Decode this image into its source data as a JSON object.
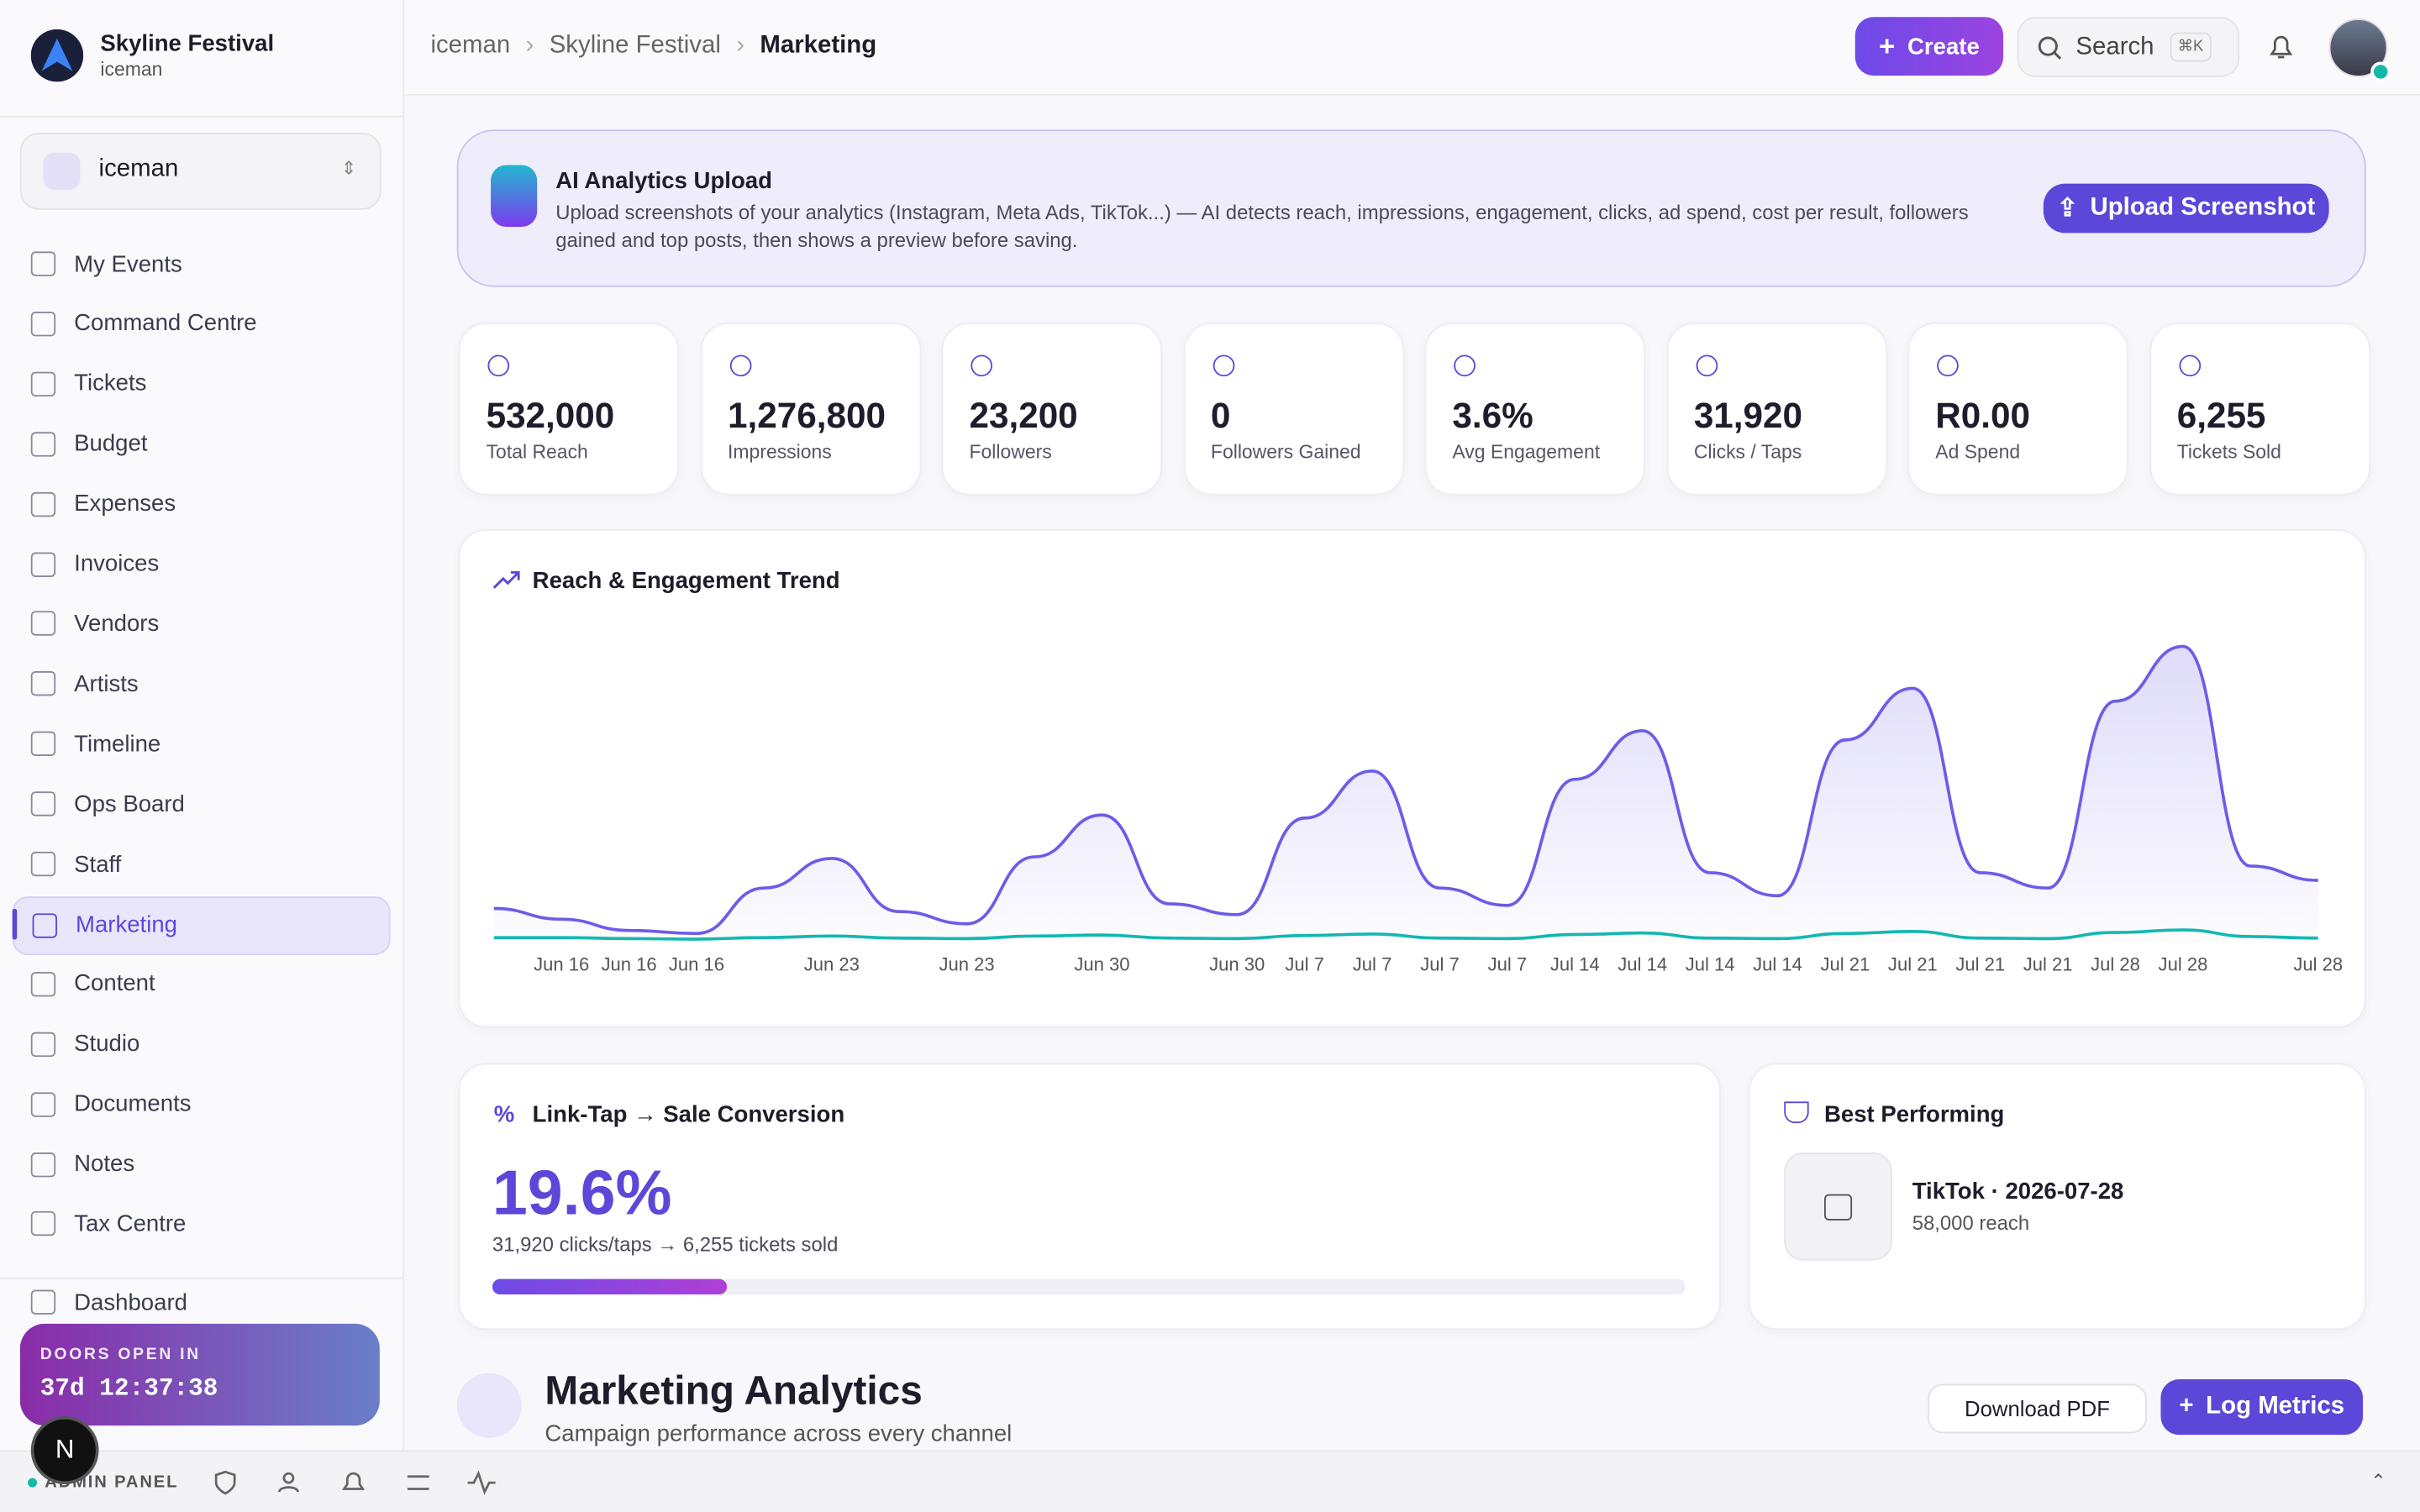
{
  "sidebar": {
    "org_name": "Skyline Festival",
    "org_user": "iceman",
    "workspace": "iceman",
    "nav": [
      "My Events",
      "Command Centre",
      "Tickets",
      "Budget",
      "Expenses",
      "Invoices",
      "Vendors",
      "Artists",
      "Timeline",
      "Ops Board",
      "Staff",
      "Marketing",
      "Content",
      "Studio",
      "Documents",
      "Notes",
      "Tax Centre"
    ],
    "active": "Marketing",
    "next_item": "Dashboard",
    "countdown_label": "DOORS OPEN IN",
    "countdown": "37d 12:37:38",
    "avatar_letter": "N"
  },
  "bottom_bar": {
    "label": "ADMIN PANEL"
  },
  "header": {
    "breadcrumbs": [
      "iceman",
      "Skyline Festival",
      "Marketing"
    ],
    "create": "Create",
    "search": "Search",
    "shortcut": "⌘K"
  },
  "ai_upload": {
    "title": "AI Analytics Upload",
    "description": "Upload screenshots of your analytics (Instagram, Meta Ads, TikTok...) — AI detects reach, impressions, engagement, clicks, ad spend, cost per result, followers gained and top posts, then shows a preview before saving.",
    "button": "Upload Screenshot"
  },
  "stats": [
    {
      "value": "532,000",
      "label": "Total Reach"
    },
    {
      "value": "1,276,800",
      "label": "Impressions"
    },
    {
      "value": "23,200",
      "label": "Followers"
    },
    {
      "value": "0",
      "label": "Followers Gained"
    },
    {
      "value": "3.6%",
      "label": "Avg Engagement"
    },
    {
      "value": "31,920",
      "label": "Clicks / Taps"
    },
    {
      "value": "R0.00",
      "label": "Ad Spend"
    },
    {
      "value": "6,255",
      "label": "Tickets Sold"
    }
  ],
  "trend": {
    "type": "area",
    "title": "Reach & Engagement Trend",
    "categories": [
      null,
      "Jun 16",
      "Jun 16",
      "Jun 16",
      null,
      "Jun 23",
      null,
      "Jun 23",
      null,
      "Jun 30",
      null,
      "Jun 30",
      "Jul 7",
      "Jul 7",
      "Jul 7",
      "Jul 7",
      "Jul 14",
      "Jul 14",
      "Jul 14",
      "Jul 14",
      "Jul 21",
      "Jul 21",
      "Jul 21",
      "Jul 21",
      "Jul 28",
      "Jul 28",
      null,
      "Jul 28"
    ],
    "series": [
      {
        "color": "#6d5ce8",
        "values": [
          6700,
          4600,
          2400,
          1800,
          10700,
          16500,
          6100,
          3700,
          16800,
          25000,
          7600,
          5500,
          24400,
          33600,
          10700,
          7300,
          32000,
          41500,
          13700,
          9200,
          39700,
          49800,
          13700,
          10700,
          47300,
          58000,
          15000,
          12200
        ]
      },
      {
        "color": "#14b8b0",
        "values": [
          1000,
          1000,
          800,
          700,
          1000,
          1300,
          900,
          800,
          1300,
          1500,
          900,
          800,
          1400,
          1700,
          900,
          800,
          1600,
          1900,
          900,
          800,
          1800,
          2200,
          900,
          800,
          2000,
          2500,
          1200,
          900
        ]
      }
    ]
  },
  "conversion": {
    "title": "Link-Tap → Sale Conversion",
    "rate": 19.6,
    "rate_label": "19.6%",
    "detail": "31,920 clicks/taps → 6,255 tickets sold"
  },
  "best": {
    "title": "Best Performing",
    "name": "TikTok · 2026-07-28",
    "reach": "58,000 reach"
  },
  "analytics": {
    "title": "Marketing Analytics",
    "subtitle": "Campaign performance across every channel",
    "download": "Download PDF",
    "log": "Log Metrics"
  }
}
